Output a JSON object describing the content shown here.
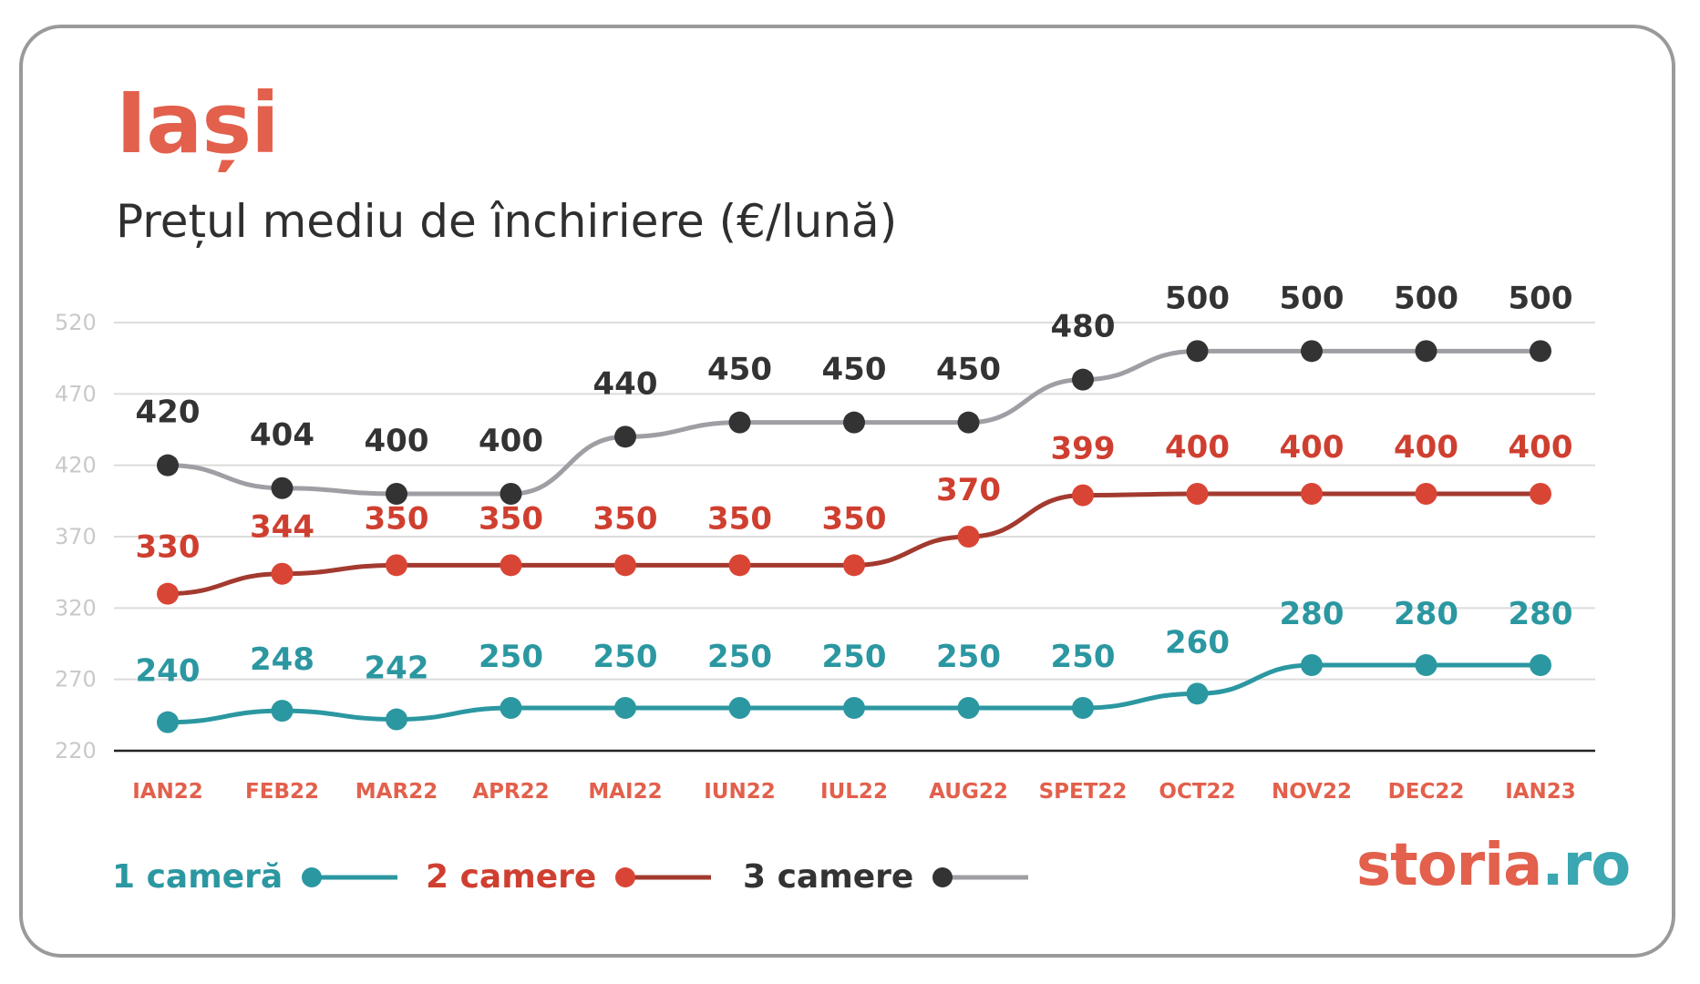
{
  "header": {
    "title": "Iași",
    "subtitle": "Prețul mediu de închiriere (€/lună)"
  },
  "brand": {
    "name": "storia",
    "suffix": ".ro"
  },
  "colors": {
    "title": "#e2604c",
    "month_label": "#e2604c",
    "tick_label": "#c9c9c9",
    "grid": "#dcdcdc",
    "axis": "#222222"
  },
  "chart_data": {
    "type": "line",
    "categories": [
      "IAN22",
      "FEB22",
      "MAR22",
      "APR22",
      "MAI22",
      "IUN22",
      "IUL22",
      "AUG22",
      "SPET22",
      "OCT22",
      "NOV22",
      "DEC22",
      "IAN23"
    ],
    "yticks": [
      "520",
      "470",
      "420",
      "370",
      "320",
      "270",
      "220"
    ],
    "ylim": [
      220,
      520
    ],
    "grid": true,
    "legend_position": "bottom-left",
    "series": [
      {
        "name": "1 cameră",
        "color": "#2b97a1",
        "marker_color": "#2b97a1",
        "label_color": "#2b97a1",
        "values": [
          240,
          248,
          242,
          250,
          250,
          250,
          250,
          250,
          250,
          260,
          280,
          280,
          280
        ]
      },
      {
        "name": "2 camere",
        "color": "#a33a2f",
        "marker_color": "#d94535",
        "label_color": "#cf3f30",
        "values": [
          330,
          344,
          350,
          350,
          350,
          350,
          350,
          370,
          399,
          400,
          400,
          400,
          400
        ]
      },
      {
        "name": "3 camere",
        "color": "#9e9ea4",
        "marker_color": "#333333",
        "label_color": "#333333",
        "values": [
          420,
          404,
          400,
          400,
          440,
          450,
          450,
          450,
          480,
          500,
          500,
          500,
          500
        ]
      }
    ]
  }
}
